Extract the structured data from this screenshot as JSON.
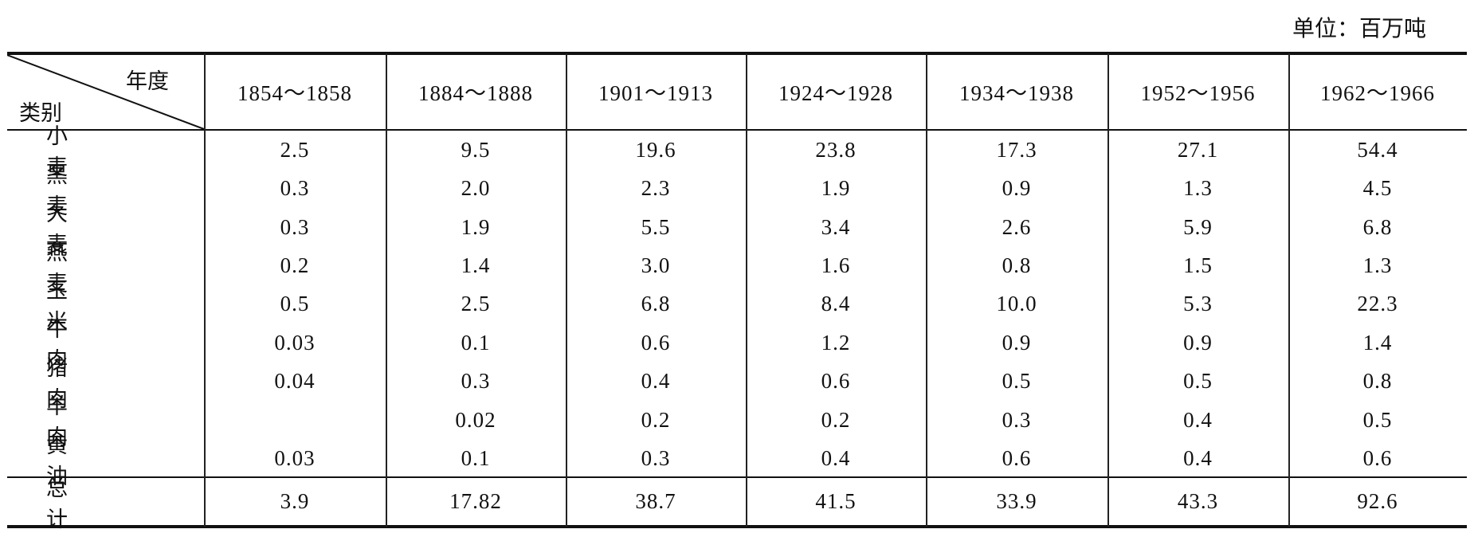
{
  "unit": "单位：百万吨",
  "table": {
    "corner": {
      "top": "年度",
      "bottom": "类别"
    },
    "columns": [
      "1854～1858",
      "1884～1888",
      "1901～1913",
      "1924～1928",
      "1934～1938",
      "1952～1956",
      "1962～1966"
    ],
    "rows": [
      [
        "小麦",
        "2.5",
        "9.5",
        "19.6",
        "23.8",
        "17.3",
        "27.1",
        "54.4"
      ],
      [
        "黑麦",
        "0.3",
        "2.0",
        "2.3",
        "1.9",
        "0.9",
        "1.3",
        "4.5"
      ],
      [
        "大麦",
        "0.3",
        "1.9",
        "5.5",
        "3.4",
        "2.6",
        "5.9",
        "6.8"
      ],
      [
        "燕麦",
        "0.2",
        "1.4",
        "3.0",
        "1.6",
        "0.8",
        "1.5",
        "1.3"
      ],
      [
        "玉米",
        "0.5",
        "2.5",
        "6.8",
        "8.4",
        "10.0",
        "5.3",
        "22.3"
      ],
      [
        "牛肉",
        "0.03",
        "0.1",
        "0.6",
        "1.2",
        "0.9",
        "0.9",
        "1.4"
      ],
      [
        "猪肉",
        "0.04",
        "0.3",
        "0.4",
        "0.6",
        "0.5",
        "0.5",
        "0.8"
      ],
      [
        "羊肉",
        null,
        "0.02",
        "0.2",
        "0.2",
        "0.3",
        "0.4",
        "0.5"
      ],
      [
        "黄油",
        "0.03",
        "0.1",
        "0.3",
        "0.4",
        "0.6",
        "0.4",
        "0.6"
      ]
    ],
    "total": [
      "总计",
      "3.9",
      "17.82",
      "38.7",
      "41.5",
      "33.9",
      "43.3",
      "92.6"
    ]
  }
}
